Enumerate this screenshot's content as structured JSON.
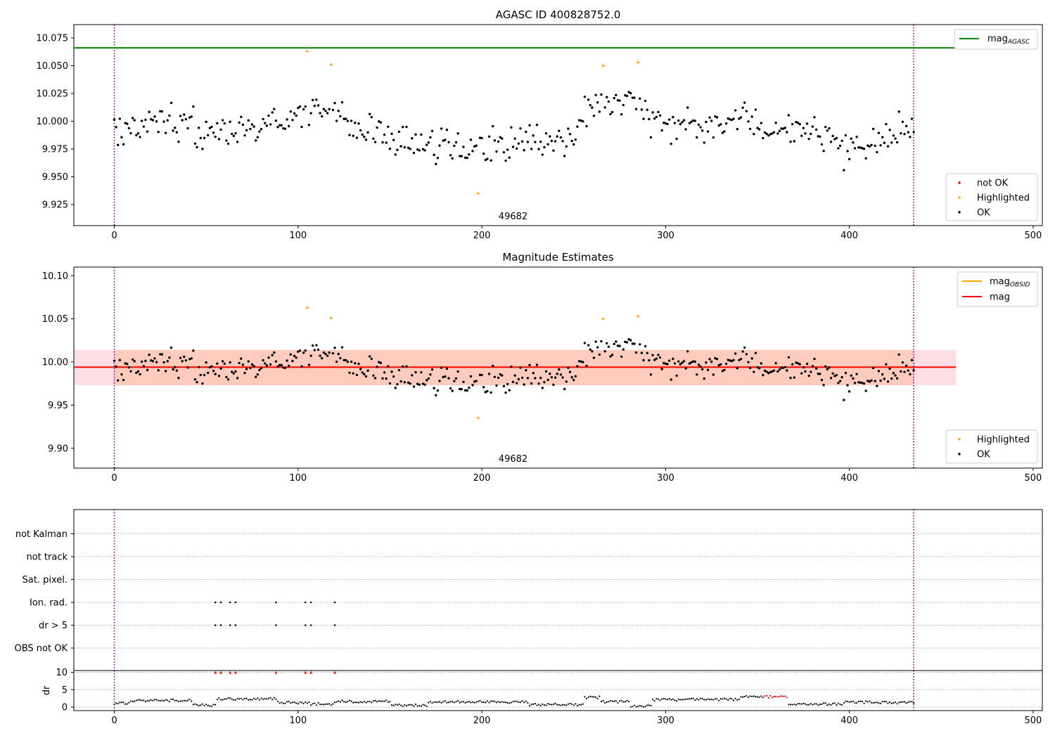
{
  "chart_data": [
    {
      "type": "scatter",
      "title": "AGASC ID 400828752.0",
      "xlim": [
        -22,
        505
      ],
      "ylim": [
        9.906,
        10.087
      ],
      "xticks": [
        0,
        100,
        200,
        300,
        400,
        500
      ],
      "yticks": [
        9.925,
        9.95,
        9.975,
        10.0,
        10.025,
        10.05,
        10.075
      ],
      "ytick_labels": [
        "9.925",
        "9.950",
        "9.975",
        "10.000",
        "10.025",
        "10.050",
        "10.075"
      ],
      "obsid_label": "49682",
      "obsid_boundaries": [
        0,
        435
      ],
      "mag_agasc": 10.066,
      "mag_agasc_xrange": [
        -22,
        458
      ],
      "legend_top": {
        "base": "mag",
        "sub": "AGASC",
        "color": "#008000"
      },
      "legend_bottom": [
        {
          "label": "not OK",
          "color": "#ff0000"
        },
        {
          "label": "Highlighted",
          "color": "#ffa500"
        },
        {
          "label": "OK",
          "color": "#000000"
        }
      ],
      "highlighted_points": [
        [
          105,
          10.063
        ],
        [
          118,
          10.051
        ],
        [
          198,
          9.935
        ],
        [
          266,
          10.05
        ],
        [
          285,
          10.053
        ]
      ]
    },
    {
      "type": "scatter",
      "title": "Magnitude Estimates",
      "xlim": [
        -22,
        505
      ],
      "ylim": [
        9.877,
        10.11
      ],
      "xticks": [
        0,
        100,
        200,
        300,
        400,
        500
      ],
      "yticks": [
        9.9,
        9.95,
        10.0,
        10.05,
        10.1
      ],
      "ytick_labels": [
        "9.90",
        "9.95",
        "10.00",
        "10.05",
        "10.10"
      ],
      "obsid_label": "49682",
      "obsid_boundaries": [
        0,
        435
      ],
      "mag": 9.994,
      "mag_xrange": [
        -22,
        458
      ],
      "mag_obsid": 9.994,
      "mag_obsid_xrange": [
        0,
        435
      ],
      "band_outer": [
        9.973,
        10.014
      ],
      "band_inner": [
        9.973,
        10.014
      ],
      "legend_top": [
        {
          "base": "mag",
          "sub": "OBSID",
          "color": "#ffa500"
        },
        {
          "base": "mag",
          "sub": "",
          "color": "#ff0000"
        }
      ],
      "legend_bottom": [
        {
          "label": "Highlighted",
          "color": "#ffa500"
        },
        {
          "label": "OK",
          "color": "#000000"
        }
      ],
      "highlighted_points": [
        [
          105,
          10.063
        ],
        [
          118,
          10.051
        ],
        [
          198,
          9.935
        ],
        [
          266,
          10.05
        ],
        [
          285,
          10.053
        ]
      ]
    },
    {
      "type": "scatter",
      "title": "",
      "xlim": [
        -22,
        505
      ],
      "categories": [
        "OBS not OK",
        "dr > 5",
        "Ion. rad.",
        "Sat. pixel.",
        "not track",
        "not Kalman"
      ],
      "obsid_boundaries": [
        0,
        435
      ],
      "flag_points": {
        "dr > 5": [
          55,
          58,
          63,
          66,
          88,
          104,
          107,
          120
        ],
        "Ion. rad.": [
          55,
          58,
          63,
          66,
          88,
          104,
          107,
          120
        ]
      },
      "dr_ylabel": "dr",
      "dr_yticks": [
        0,
        5,
        10
      ],
      "dr_ylim": [
        -1,
        10.5
      ],
      "dr_clipped_x": [
        55,
        58,
        63,
        66,
        88,
        104,
        107,
        120
      ],
      "dr_red_xrange": [
        352,
        366
      ]
    }
  ]
}
